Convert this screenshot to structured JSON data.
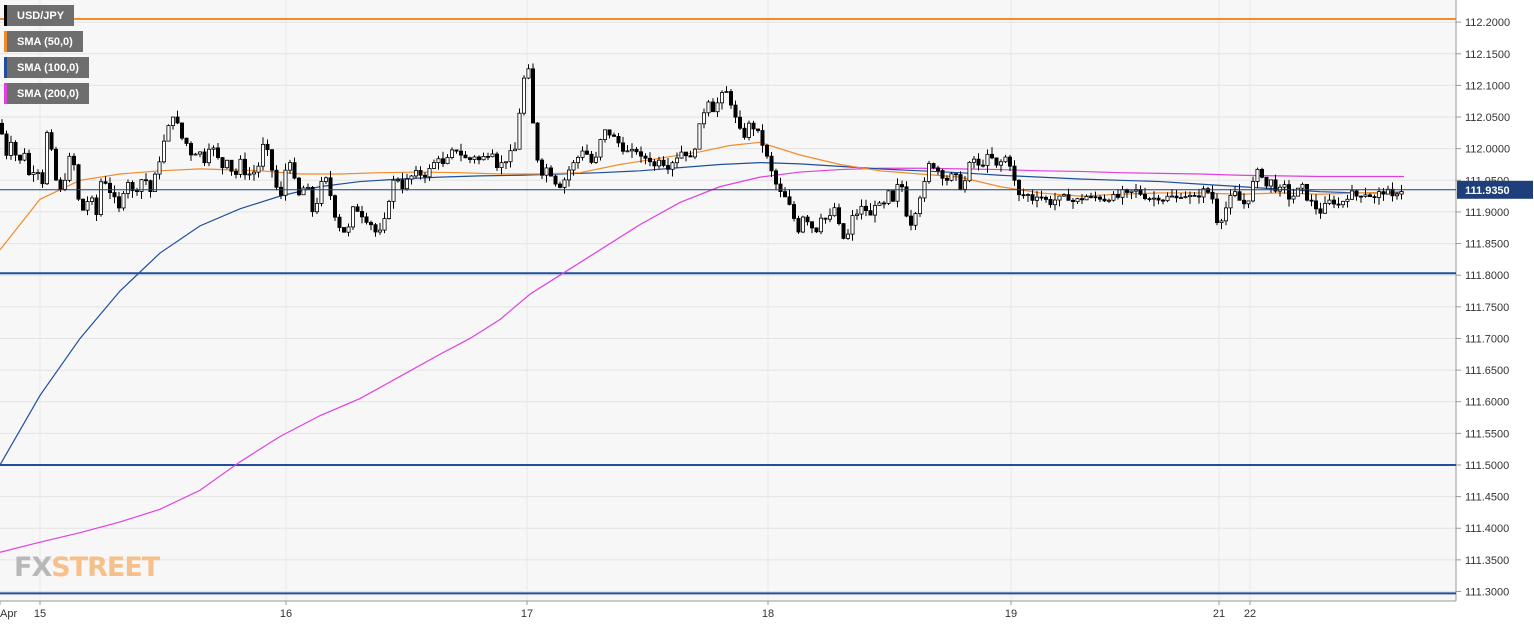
{
  "legend": [
    {
      "label": "USD/JPY",
      "color": "#000000"
    },
    {
      "label": "SMA (50,0)",
      "color": "#f28c28"
    },
    {
      "label": "SMA (100,0)",
      "color": "#1f4e9c"
    },
    {
      "label": "SMA (200,0)",
      "color": "#e040e0"
    }
  ],
  "logo": {
    "fx": "FX",
    "street": "STREET"
  },
  "current_price": {
    "value": 111.935,
    "label": "111.9350"
  },
  "chart_data": {
    "type": "candlestick",
    "symbol": "USD/JPY",
    "timeframe": "15m",
    "x_ticks": [
      "Apr",
      "15",
      "16",
      "17",
      "18",
      "19",
      "21",
      "22"
    ],
    "y_ticks": [
      "112.2000",
      "112.1500",
      "112.1000",
      "112.0500",
      "112.0000",
      "111.9500",
      "111.9000",
      "111.8500",
      "111.8000",
      "111.7500",
      "111.7000",
      "111.6500",
      "111.6000",
      "111.5500",
      "111.5000",
      "111.4500",
      "111.4000",
      "111.3500",
      "111.3000"
    ],
    "ylim": [
      111.285,
      112.235
    ],
    "grid": true,
    "horizontal_levels": [
      {
        "value": 112.205,
        "color": "#f28c28"
      },
      {
        "value": 111.803,
        "color": "#1f4e9c"
      },
      {
        "value": 111.5,
        "color": "#1f4e9c"
      },
      {
        "value": 111.297,
        "color": "#1f4e9c"
      }
    ],
    "anchor_closes": [
      [
        0,
        112.04
      ],
      [
        6,
        111.99
      ],
      [
        12,
        112.02
      ],
      [
        18,
        111.97
      ],
      [
        24,
        112.0
      ],
      [
        30,
        111.95
      ],
      [
        36,
        111.98
      ],
      [
        42,
        111.94
      ],
      [
        48,
        112.04
      ],
      [
        54,
        111.96
      ],
      [
        60,
        111.93
      ],
      [
        66,
        111.96
      ],
      [
        72,
        112.0
      ],
      [
        78,
        111.92
      ],
      [
        84,
        111.9
      ],
      [
        90,
        111.93
      ],
      [
        96,
        111.89
      ],
      [
        102,
        111.96
      ],
      [
        108,
        111.94
      ],
      [
        114,
        111.92
      ],
      [
        120,
        111.9
      ],
      [
        126,
        111.96
      ],
      [
        132,
        111.93
      ],
      [
        138,
        111.94
      ],
      [
        144,
        111.96
      ],
      [
        150,
        111.93
      ],
      [
        156,
        111.96
      ],
      [
        162,
        112.0
      ],
      [
        168,
        112.03
      ],
      [
        174,
        112.06
      ],
      [
        180,
        112.02
      ],
      [
        186,
        112.01
      ],
      [
        192,
        111.99
      ],
      [
        198,
        112.0
      ],
      [
        204,
        111.98
      ],
      [
        210,
        112.01
      ],
      [
        216,
        111.99
      ],
      [
        222,
        111.97
      ],
      [
        228,
        111.99
      ],
      [
        234,
        111.95
      ],
      [
        240,
        111.98
      ],
      [
        246,
        111.96
      ],
      [
        252,
        111.96
      ],
      [
        258,
        111.97
      ],
      [
        264,
        112.01
      ],
      [
        270,
        111.98
      ],
      [
        276,
        111.94
      ],
      [
        282,
        111.92
      ],
      [
        288,
        112.0
      ],
      [
        294,
        111.95
      ],
      [
        300,
        111.92
      ],
      [
        306,
        111.95
      ],
      [
        312,
        111.9
      ],
      [
        318,
        111.92
      ],
      [
        324,
        111.96
      ],
      [
        330,
        111.93
      ],
      [
        336,
        111.89
      ],
      [
        342,
        111.87
      ],
      [
        348,
        111.87
      ],
      [
        354,
        111.91
      ],
      [
        360,
        111.9
      ],
      [
        366,
        111.89
      ],
      [
        372,
        111.88
      ],
      [
        378,
        111.86
      ],
      [
        384,
        111.88
      ],
      [
        390,
        111.93
      ],
      [
        396,
        111.96
      ],
      [
        402,
        111.94
      ],
      [
        408,
        111.95
      ],
      [
        414,
        111.96
      ],
      [
        420,
        111.96
      ],
      [
        426,
        111.96
      ],
      [
        432,
        111.97
      ],
      [
        438,
        111.99
      ],
      [
        444,
        111.97
      ],
      [
        450,
        111.99
      ],
      [
        456,
        112.0
      ],
      [
        462,
        111.99
      ],
      [
        468,
        111.98
      ],
      [
        474,
        111.99
      ],
      [
        480,
        111.98
      ],
      [
        486,
        111.99
      ],
      [
        492,
        112.0
      ],
      [
        498,
        111.97
      ],
      [
        504,
        111.98
      ],
      [
        510,
        111.99
      ],
      [
        516,
        112.0
      ],
      [
        522,
        112.1
      ],
      [
        528,
        112.13
      ],
      [
        534,
        112.02
      ],
      [
        540,
        111.96
      ],
      [
        546,
        111.97
      ],
      [
        552,
        111.96
      ],
      [
        558,
        111.94
      ],
      [
        564,
        111.95
      ],
      [
        570,
        111.97
      ],
      [
        576,
        111.98
      ],
      [
        582,
        112.0
      ],
      [
        588,
        111.99
      ],
      [
        594,
        111.97
      ],
      [
        600,
        112.01
      ],
      [
        606,
        112.03
      ],
      [
        612,
        112.02
      ],
      [
        618,
        112.01
      ],
      [
        624,
        112.0
      ],
      [
        630,
        111.99
      ],
      [
        636,
        112.0
      ],
      [
        642,
        111.98
      ],
      [
        648,
        111.99
      ],
      [
        654,
        111.97
      ],
      [
        660,
        111.99
      ],
      [
        666,
        111.97
      ],
      [
        672,
        111.98
      ],
      [
        678,
        111.99
      ],
      [
        684,
        112.0
      ],
      [
        690,
        111.98
      ],
      [
        696,
        112.01
      ],
      [
        702,
        112.05
      ],
      [
        708,
        112.08
      ],
      [
        714,
        112.06
      ],
      [
        720,
        112.08
      ],
      [
        726,
        112.09
      ],
      [
        732,
        112.07
      ],
      [
        738,
        112.03
      ],
      [
        744,
        112.02
      ],
      [
        750,
        112.04
      ],
      [
        756,
        112.03
      ],
      [
        762,
        112.01
      ],
      [
        768,
        111.98
      ],
      [
        774,
        111.95
      ],
      [
        780,
        111.93
      ],
      [
        786,
        111.92
      ],
      [
        792,
        111.9
      ],
      [
        798,
        111.87
      ],
      [
        804,
        111.9
      ],
      [
        810,
        111.88
      ],
      [
        816,
        111.87
      ],
      [
        822,
        111.9
      ],
      [
        828,
        111.88
      ],
      [
        834,
        111.91
      ],
      [
        840,
        111.87
      ],
      [
        846,
        111.85
      ],
      [
        852,
        111.89
      ],
      [
        858,
        111.9
      ],
      [
        864,
        111.91
      ],
      [
        870,
        111.89
      ],
      [
        876,
        111.92
      ],
      [
        882,
        111.9
      ],
      [
        888,
        111.93
      ],
      [
        894,
        111.91
      ],
      [
        900,
        111.96
      ],
      [
        906,
        111.9
      ],
      [
        912,
        111.88
      ],
      [
        918,
        111.92
      ],
      [
        924,
        111.94
      ],
      [
        930,
        111.98
      ],
      [
        936,
        111.97
      ],
      [
        942,
        111.96
      ],
      [
        948,
        111.95
      ],
      [
        954,
        111.96
      ],
      [
        960,
        111.94
      ],
      [
        966,
        111.95
      ],
      [
        972,
        111.99
      ],
      [
        978,
        111.97
      ],
      [
        984,
        111.98
      ],
      [
        990,
        111.99
      ],
      [
        996,
        111.97
      ],
      [
        1002,
        111.98
      ],
      [
        1008,
        111.99
      ],
      [
        1014,
        111.95
      ],
      [
        1020,
        111.92
      ],
      [
        1026,
        111.93
      ],
      [
        1032,
        111.92
      ],
      [
        1038,
        111.93
      ],
      [
        1044,
        111.92
      ],
      [
        1050,
        111.915
      ],
      [
        1056,
        111.92
      ],
      [
        1062,
        111.92
      ],
      [
        1068,
        111.925
      ],
      [
        1074,
        111.915
      ],
      [
        1080,
        111.92
      ],
      [
        1086,
        111.925
      ],
      [
        1092,
        111.92
      ],
      [
        1098,
        111.925
      ],
      [
        1104,
        111.92
      ],
      [
        1110,
        111.925
      ],
      [
        1116,
        111.92
      ],
      [
        1122,
        111.93
      ],
      [
        1128,
        111.925
      ],
      [
        1134,
        111.935
      ],
      [
        1140,
        111.93
      ],
      [
        1146,
        111.925
      ],
      [
        1152,
        111.92
      ],
      [
        1158,
        111.925
      ],
      [
        1164,
        111.92
      ],
      [
        1170,
        111.925
      ],
      [
        1176,
        111.92
      ],
      [
        1182,
        111.93
      ],
      [
        1188,
        111.925
      ],
      [
        1194,
        111.92
      ],
      [
        1200,
        111.93
      ],
      [
        1206,
        111.935
      ],
      [
        1212,
        111.925
      ],
      [
        1218,
        111.88
      ],
      [
        1224,
        111.9
      ],
      [
        1230,
        111.92
      ],
      [
        1236,
        111.93
      ],
      [
        1242,
        111.91
      ],
      [
        1248,
        111.92
      ],
      [
        1254,
        111.95
      ],
      [
        1260,
        111.97
      ],
      [
        1266,
        111.94
      ],
      [
        1272,
        111.95
      ],
      [
        1278,
        111.93
      ],
      [
        1284,
        111.94
      ],
      [
        1290,
        111.92
      ],
      [
        1296,
        111.93
      ],
      [
        1302,
        111.94
      ],
      [
        1308,
        111.92
      ],
      [
        1314,
        111.91
      ],
      [
        1320,
        111.9
      ],
      [
        1326,
        111.91
      ],
      [
        1332,
        111.92
      ],
      [
        1338,
        111.91
      ],
      [
        1344,
        111.92
      ],
      [
        1350,
        111.93
      ],
      [
        1356,
        111.925
      ],
      [
        1362,
        111.93
      ],
      [
        1368,
        111.93
      ],
      [
        1374,
        111.92
      ],
      [
        1380,
        111.93
      ],
      [
        1386,
        111.935
      ],
      [
        1392,
        111.92
      ],
      [
        1398,
        111.935
      ],
      [
        1404,
        111.935
      ]
    ],
    "sma50": [
      [
        0,
        111.84
      ],
      [
        40,
        111.92
      ],
      [
        80,
        111.95
      ],
      [
        120,
        111.96
      ],
      [
        160,
        111.965
      ],
      [
        200,
        111.968
      ],
      [
        260,
        111.965
      ],
      [
        300,
        111.96
      ],
      [
        340,
        111.96
      ],
      [
        380,
        111.962
      ],
      [
        420,
        111.963
      ],
      [
        460,
        111.962
      ],
      [
        500,
        111.96
      ],
      [
        540,
        111.96
      ],
      [
        580,
        111.962
      ],
      [
        620,
        111.975
      ],
      [
        660,
        111.985
      ],
      [
        700,
        111.995
      ],
      [
        730,
        112.005
      ],
      [
        760,
        112.01
      ],
      [
        800,
        111.99
      ],
      [
        840,
        111.975
      ],
      [
        880,
        111.965
      ],
      [
        920,
        111.96
      ],
      [
        960,
        111.955
      ],
      [
        1000,
        111.94
      ],
      [
        1040,
        111.93
      ],
      [
        1080,
        111.925
      ],
      [
        1120,
        111.928
      ],
      [
        1160,
        111.93
      ],
      [
        1200,
        111.93
      ],
      [
        1240,
        111.928
      ],
      [
        1280,
        111.93
      ],
      [
        1320,
        111.928
      ],
      [
        1360,
        111.93
      ],
      [
        1404,
        111.932
      ]
    ],
    "sma100": [
      [
        0,
        111.5
      ],
      [
        40,
        111.61
      ],
      [
        80,
        111.7
      ],
      [
        120,
        111.775
      ],
      [
        160,
        111.835
      ],
      [
        200,
        111.878
      ],
      [
        240,
        111.905
      ],
      [
        280,
        111.925
      ],
      [
        320,
        111.94
      ],
      [
        360,
        111.948
      ],
      [
        400,
        111.952
      ],
      [
        440,
        111.955
      ],
      [
        480,
        111.957
      ],
      [
        520,
        111.958
      ],
      [
        560,
        111.96
      ],
      [
        600,
        111.962
      ],
      [
        640,
        111.965
      ],
      [
        680,
        111.97
      ],
      [
        720,
        111.975
      ],
      [
        760,
        111.978
      ],
      [
        800,
        111.976
      ],
      [
        840,
        111.972
      ],
      [
        880,
        111.968
      ],
      [
        920,
        111.965
      ],
      [
        960,
        111.962
      ],
      [
        1000,
        111.958
      ],
      [
        1040,
        111.955
      ],
      [
        1080,
        111.952
      ],
      [
        1120,
        111.95
      ],
      [
        1160,
        111.948
      ],
      [
        1200,
        111.944
      ],
      [
        1240,
        111.94
      ],
      [
        1280,
        111.936
      ],
      [
        1320,
        111.932
      ],
      [
        1360,
        111.93
      ],
      [
        1404,
        111.93
      ]
    ],
    "sma200": [
      [
        0,
        111.362
      ],
      [
        40,
        111.378
      ],
      [
        80,
        111.393
      ],
      [
        120,
        111.41
      ],
      [
        160,
        111.43
      ],
      [
        200,
        111.46
      ],
      [
        240,
        111.505
      ],
      [
        280,
        111.545
      ],
      [
        320,
        111.578
      ],
      [
        360,
        111.605
      ],
      [
        400,
        111.64
      ],
      [
        440,
        111.675
      ],
      [
        470,
        111.7
      ],
      [
        500,
        111.73
      ],
      [
        530,
        111.77
      ],
      [
        560,
        111.8
      ],
      [
        600,
        111.84
      ],
      [
        640,
        111.88
      ],
      [
        680,
        111.915
      ],
      [
        720,
        111.94
      ],
      [
        760,
        111.955
      ],
      [
        800,
        111.963
      ],
      [
        840,
        111.967
      ],
      [
        880,
        111.969
      ],
      [
        920,
        111.969
      ],
      [
        960,
        111.968
      ],
      [
        1000,
        111.967
      ],
      [
        1040,
        111.965
      ],
      [
        1080,
        111.964
      ],
      [
        1120,
        111.962
      ],
      [
        1160,
        111.961
      ],
      [
        1200,
        111.96
      ],
      [
        1240,
        111.958
      ],
      [
        1280,
        111.957
      ],
      [
        1320,
        111.956
      ],
      [
        1360,
        111.956
      ],
      [
        1404,
        111.956
      ]
    ]
  }
}
